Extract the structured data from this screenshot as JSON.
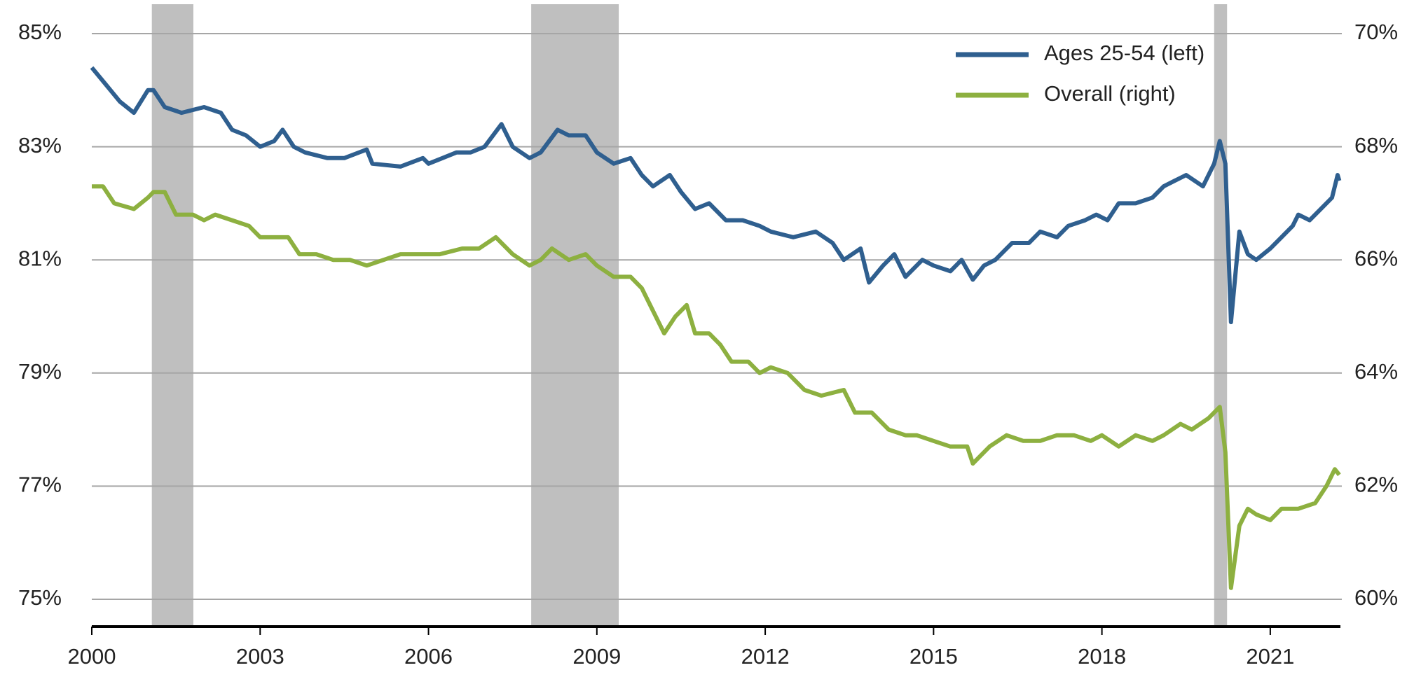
{
  "chart_data": {
    "type": "line",
    "xlim": [
      2000,
      2022.25
    ],
    "xticks": [
      2000,
      2003,
      2006,
      2009,
      2012,
      2015,
      2018,
      2021
    ],
    "ylim": [
      75,
      85
    ],
    "yticks": [
      {
        "value": 75,
        "label": "75%"
      },
      {
        "value": 77,
        "label": "77%"
      },
      {
        "value": 79,
        "label": "79%"
      },
      {
        "value": 81,
        "label": "81%"
      },
      {
        "value": 83,
        "label": "83%"
      },
      {
        "value": 85,
        "label": "85%"
      }
    ],
    "y2lim": [
      60,
      70
    ],
    "y2ticks": [
      {
        "value": 60,
        "label": "60%"
      },
      {
        "value": 62,
        "label": "62%"
      },
      {
        "value": 64,
        "label": "64%"
      },
      {
        "value": 66,
        "label": "66%"
      },
      {
        "value": 68,
        "label": "68%"
      },
      {
        "value": 70,
        "label": "70%"
      }
    ],
    "grid": true,
    "legend": "top-right",
    "recessions": [
      [
        2001.07,
        2001.81
      ],
      [
        2007.83,
        2009.39
      ],
      [
        2020.0,
        2020.23
      ]
    ],
    "recession_color": "#bfbfbf",
    "series": [
      {
        "name": "Ages 25-54 (left)",
        "color": "#2f5f8f",
        "axis": "y",
        "x": [
          2000.0,
          2000.25,
          2000.5,
          2000.75,
          2001.0,
          2001.1,
          2001.3,
          2001.6,
          2002.0,
          2002.3,
          2002.5,
          2002.75,
          2003.0,
          2003.25,
          2003.4,
          2003.6,
          2003.8,
          2004.2,
          2004.5,
          2004.9,
          2005.0,
          2005.5,
          2005.9,
          2006.0,
          2006.5,
          2006.75,
          2007.0,
          2007.3,
          2007.5,
          2007.8,
          2008.0,
          2008.3,
          2008.5,
          2008.8,
          2009.0,
          2009.3,
          2009.6,
          2009.8,
          2010.0,
          2010.3,
          2010.5,
          2010.75,
          2011.0,
          2011.3,
          2011.6,
          2011.9,
          2012.1,
          2012.5,
          2012.9,
          2013.2,
          2013.4,
          2013.7,
          2013.85,
          2014.1,
          2014.3,
          2014.5,
          2014.8,
          2015.0,
          2015.3,
          2015.5,
          2015.7,
          2015.9,
          2016.1,
          2016.4,
          2016.7,
          2016.9,
          2017.2,
          2017.4,
          2017.7,
          2017.9,
          2018.1,
          2018.3,
          2018.6,
          2018.9,
          2019.1,
          2019.3,
          2019.5,
          2019.8,
          2020.0,
          2020.1,
          2020.2,
          2020.3,
          2020.45,
          2020.6,
          2020.75,
          2021.0,
          2021.2,
          2021.4,
          2021.5,
          2021.7,
          2021.9,
          2022.1,
          2022.2,
          2022.23
        ],
        "values": [
          84.4,
          84.1,
          83.8,
          83.6,
          84.0,
          84.0,
          83.7,
          83.6,
          83.7,
          83.6,
          83.3,
          83.2,
          83.0,
          83.1,
          83.3,
          83.0,
          82.9,
          82.8,
          82.8,
          82.95,
          82.7,
          82.65,
          82.8,
          82.7,
          82.9,
          82.9,
          83.0,
          83.4,
          83.0,
          82.8,
          82.9,
          83.3,
          83.2,
          83.2,
          82.9,
          82.7,
          82.8,
          82.5,
          82.3,
          82.5,
          82.2,
          81.9,
          82.0,
          81.7,
          81.7,
          81.6,
          81.5,
          81.4,
          81.5,
          81.3,
          81.0,
          81.2,
          80.6,
          80.9,
          81.1,
          80.7,
          81.0,
          80.9,
          80.8,
          81.0,
          80.65,
          80.9,
          81.0,
          81.3,
          81.3,
          81.5,
          81.4,
          81.6,
          81.7,
          81.8,
          81.7,
          82.0,
          82.0,
          82.1,
          82.3,
          82.4,
          82.5,
          82.3,
          82.7,
          83.1,
          82.7,
          79.9,
          81.5,
          81.1,
          81.0,
          81.2,
          81.4,
          81.6,
          81.8,
          81.7,
          81.9,
          82.1,
          82.5,
          82.4
        ]
      },
      {
        "name": "Overall (right)",
        "color": "#8db040",
        "axis": "y2",
        "x": [
          2000.0,
          2000.2,
          2000.4,
          2000.75,
          2001.0,
          2001.1,
          2001.3,
          2001.5,
          2001.8,
          2002.0,
          2002.2,
          2002.5,
          2002.8,
          2003.0,
          2003.3,
          2003.5,
          2003.7,
          2004.0,
          2004.3,
          2004.6,
          2004.9,
          2005.2,
          2005.5,
          2005.9,
          2006.2,
          2006.6,
          2006.9,
          2007.2,
          2007.5,
          2007.8,
          2008.0,
          2008.2,
          2008.5,
          2008.8,
          2009.0,
          2009.3,
          2009.6,
          2009.8,
          2010.0,
          2010.2,
          2010.4,
          2010.6,
          2010.75,
          2011.0,
          2011.2,
          2011.4,
          2011.7,
          2011.9,
          2012.1,
          2012.4,
          2012.7,
          2013.0,
          2013.4,
          2013.6,
          2013.9,
          2014.2,
          2014.5,
          2014.7,
          2015.0,
          2015.3,
          2015.6,
          2015.7,
          2016.0,
          2016.3,
          2016.6,
          2016.9,
          2017.2,
          2017.5,
          2017.8,
          2018.0,
          2018.3,
          2018.6,
          2018.9,
          2019.1,
          2019.4,
          2019.6,
          2019.9,
          2020.1,
          2020.2,
          2020.3,
          2020.45,
          2020.6,
          2020.75,
          2021.0,
          2021.2,
          2021.5,
          2021.8,
          2022.0,
          2022.15,
          2022.23
        ],
        "values": [
          67.3,
          67.3,
          67.0,
          66.9,
          67.1,
          67.2,
          67.2,
          66.8,
          66.8,
          66.7,
          66.8,
          66.7,
          66.6,
          66.4,
          66.4,
          66.4,
          66.1,
          66.1,
          66.0,
          66.0,
          65.9,
          66.0,
          66.1,
          66.1,
          66.1,
          66.2,
          66.2,
          66.4,
          66.1,
          65.9,
          66.0,
          66.2,
          66.0,
          66.1,
          65.9,
          65.7,
          65.7,
          65.5,
          65.1,
          64.7,
          65.0,
          65.2,
          64.7,
          64.7,
          64.5,
          64.2,
          64.2,
          64.0,
          64.1,
          64.0,
          63.7,
          63.6,
          63.7,
          63.3,
          63.3,
          63.0,
          62.9,
          62.9,
          62.8,
          62.7,
          62.7,
          62.4,
          62.7,
          62.9,
          62.8,
          62.8,
          62.9,
          62.9,
          62.8,
          62.9,
          62.7,
          62.9,
          62.8,
          62.9,
          63.1,
          63.0,
          63.2,
          63.4,
          62.6,
          60.2,
          61.3,
          61.6,
          61.5,
          61.4,
          61.6,
          61.6,
          61.7,
          62.0,
          62.3,
          62.2
        ]
      }
    ]
  }
}
